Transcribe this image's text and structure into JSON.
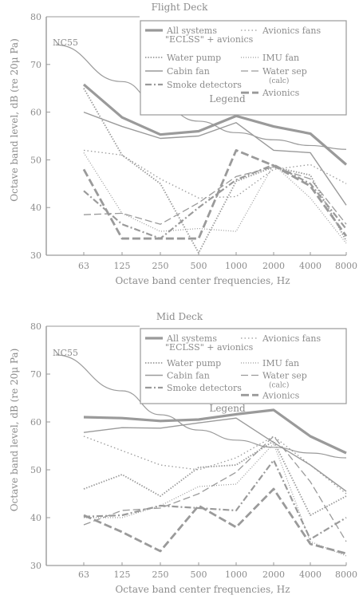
{
  "chart_data": [
    {
      "type": "line",
      "title": "Flight Deck",
      "xlabel": "Octave band center frequencies, Hz",
      "ylabel": "Octave band level, dB (re 20μ Pa)",
      "categories": [
        "63",
        "125",
        "250",
        "500",
        "1000",
        "2000",
        "4000",
        "8000"
      ],
      "ylim": [
        30,
        80
      ],
      "yticks": [
        30,
        40,
        50,
        60,
        70,
        80
      ],
      "grid": false,
      "legend_position": "top-right",
      "legend_caption": "Legend",
      "reference_curve": {
        "name": "NC55",
        "values": [
          74.1,
          66.4,
          61.2,
          58.1,
          55.7,
          54.2,
          53.0,
          52.2
        ]
      },
      "series": [
        {
          "name": "All systems \"ECLSS\" + avionics",
          "style": "thick",
          "values": [
            65.8,
            58.9,
            55.3,
            56.0,
            59.2,
            57.0,
            55.5,
            49.0
          ]
        },
        {
          "name": "Avionics fans",
          "style": "dotted",
          "values": [
            52.0,
            51.0,
            46.0,
            42.0,
            42.3,
            48.0,
            49.0,
            45.0
          ]
        },
        {
          "name": "Water pump",
          "style": "dense-dotted",
          "values": [
            65.0,
            51.0,
            45.0,
            30.5,
            45.5,
            48.5,
            46.8,
            33.0
          ]
        },
        {
          "name": "IMU fan",
          "style": "fine-dotted",
          "values": [
            51.5,
            38.8,
            35.0,
            35.6,
            35.0,
            49.0,
            42.0,
            32.5
          ]
        },
        {
          "name": "Cabin fan",
          "style": "solid",
          "values": [
            60.0,
            57.0,
            54.5,
            55.0,
            57.8,
            52.0,
            51.5,
            40.5
          ]
        },
        {
          "name": "Water sep (calc)",
          "style": "long-dash",
          "values": [
            38.5,
            38.8,
            36.5,
            41.0,
            46.5,
            48.5,
            46.0,
            36.5
          ]
        },
        {
          "name": "Smoke detectors",
          "style": "dash-dot",
          "values": [
            43.5,
            36.5,
            33.5,
            40.0,
            45.8,
            49.0,
            45.0,
            35.5
          ]
        },
        {
          "name": "Avionics",
          "style": "thick-dash",
          "values": [
            48.0,
            33.5,
            33.5,
            33.5,
            52.0,
            48.8,
            44.5,
            34.0
          ]
        }
      ]
    },
    {
      "type": "line",
      "title": "Mid Deck",
      "xlabel": "Octave band center frequencies, Hz",
      "ylabel": "Octave band level, dB (re 20μ Pa)",
      "categories": [
        "63",
        "125",
        "250",
        "500",
        "1000",
        "2000",
        "4000",
        "8000"
      ],
      "ylim": [
        30,
        80
      ],
      "yticks": [
        30,
        40,
        50,
        60,
        70,
        80
      ],
      "grid": false,
      "legend_position": "top-right",
      "legend_caption": "Legend",
      "reference_curve": {
        "name": "NC55",
        "values": [
          74.0,
          66.5,
          61.5,
          58.3,
          56.2,
          54.7,
          53.5,
          52.5
        ]
      },
      "series": [
        {
          "name": "All systems \"ECLSS\" + avionics",
          "style": "thick",
          "values": [
            61.0,
            60.8,
            60.2,
            60.5,
            61.6,
            62.5,
            57.0,
            53.5
          ]
        },
        {
          "name": "Avionics fans",
          "style": "dotted",
          "values": [
            57.0,
            54.0,
            51.0,
            50.0,
            52.5,
            57.0,
            51.0,
            45.0
          ]
        },
        {
          "name": "Water pump",
          "style": "dense-dotted",
          "values": [
            46.0,
            49.0,
            44.5,
            50.5,
            51.0,
            56.0,
            40.5,
            44.5
          ]
        },
        {
          "name": "IMU fan",
          "style": "fine-dotted",
          "values": [
            40.0,
            40.0,
            42.5,
            46.5,
            47.0,
            55.5,
            35.0,
            32.0
          ]
        },
        {
          "name": "Cabin fan",
          "style": "solid",
          "values": [
            57.8,
            58.8,
            58.7,
            59.8,
            60.8,
            55.7,
            51.0,
            45.5
          ]
        },
        {
          "name": "Water sep (calc)",
          "style": "long-dash",
          "values": [
            38.5,
            41.5,
            42.0,
            45.0,
            49.5,
            57.0,
            47.5,
            35.0
          ]
        },
        {
          "name": "Smoke detectors",
          "style": "dash-dot",
          "values": [
            40.2,
            40.5,
            42.5,
            42.0,
            41.5,
            52.0,
            35.5,
            40.0
          ]
        },
        {
          "name": "Avionics",
          "style": "thick-dash",
          "values": [
            40.5,
            37.0,
            33.0,
            42.5,
            38.0,
            46.0,
            34.5,
            32.5
          ]
        }
      ]
    }
  ]
}
